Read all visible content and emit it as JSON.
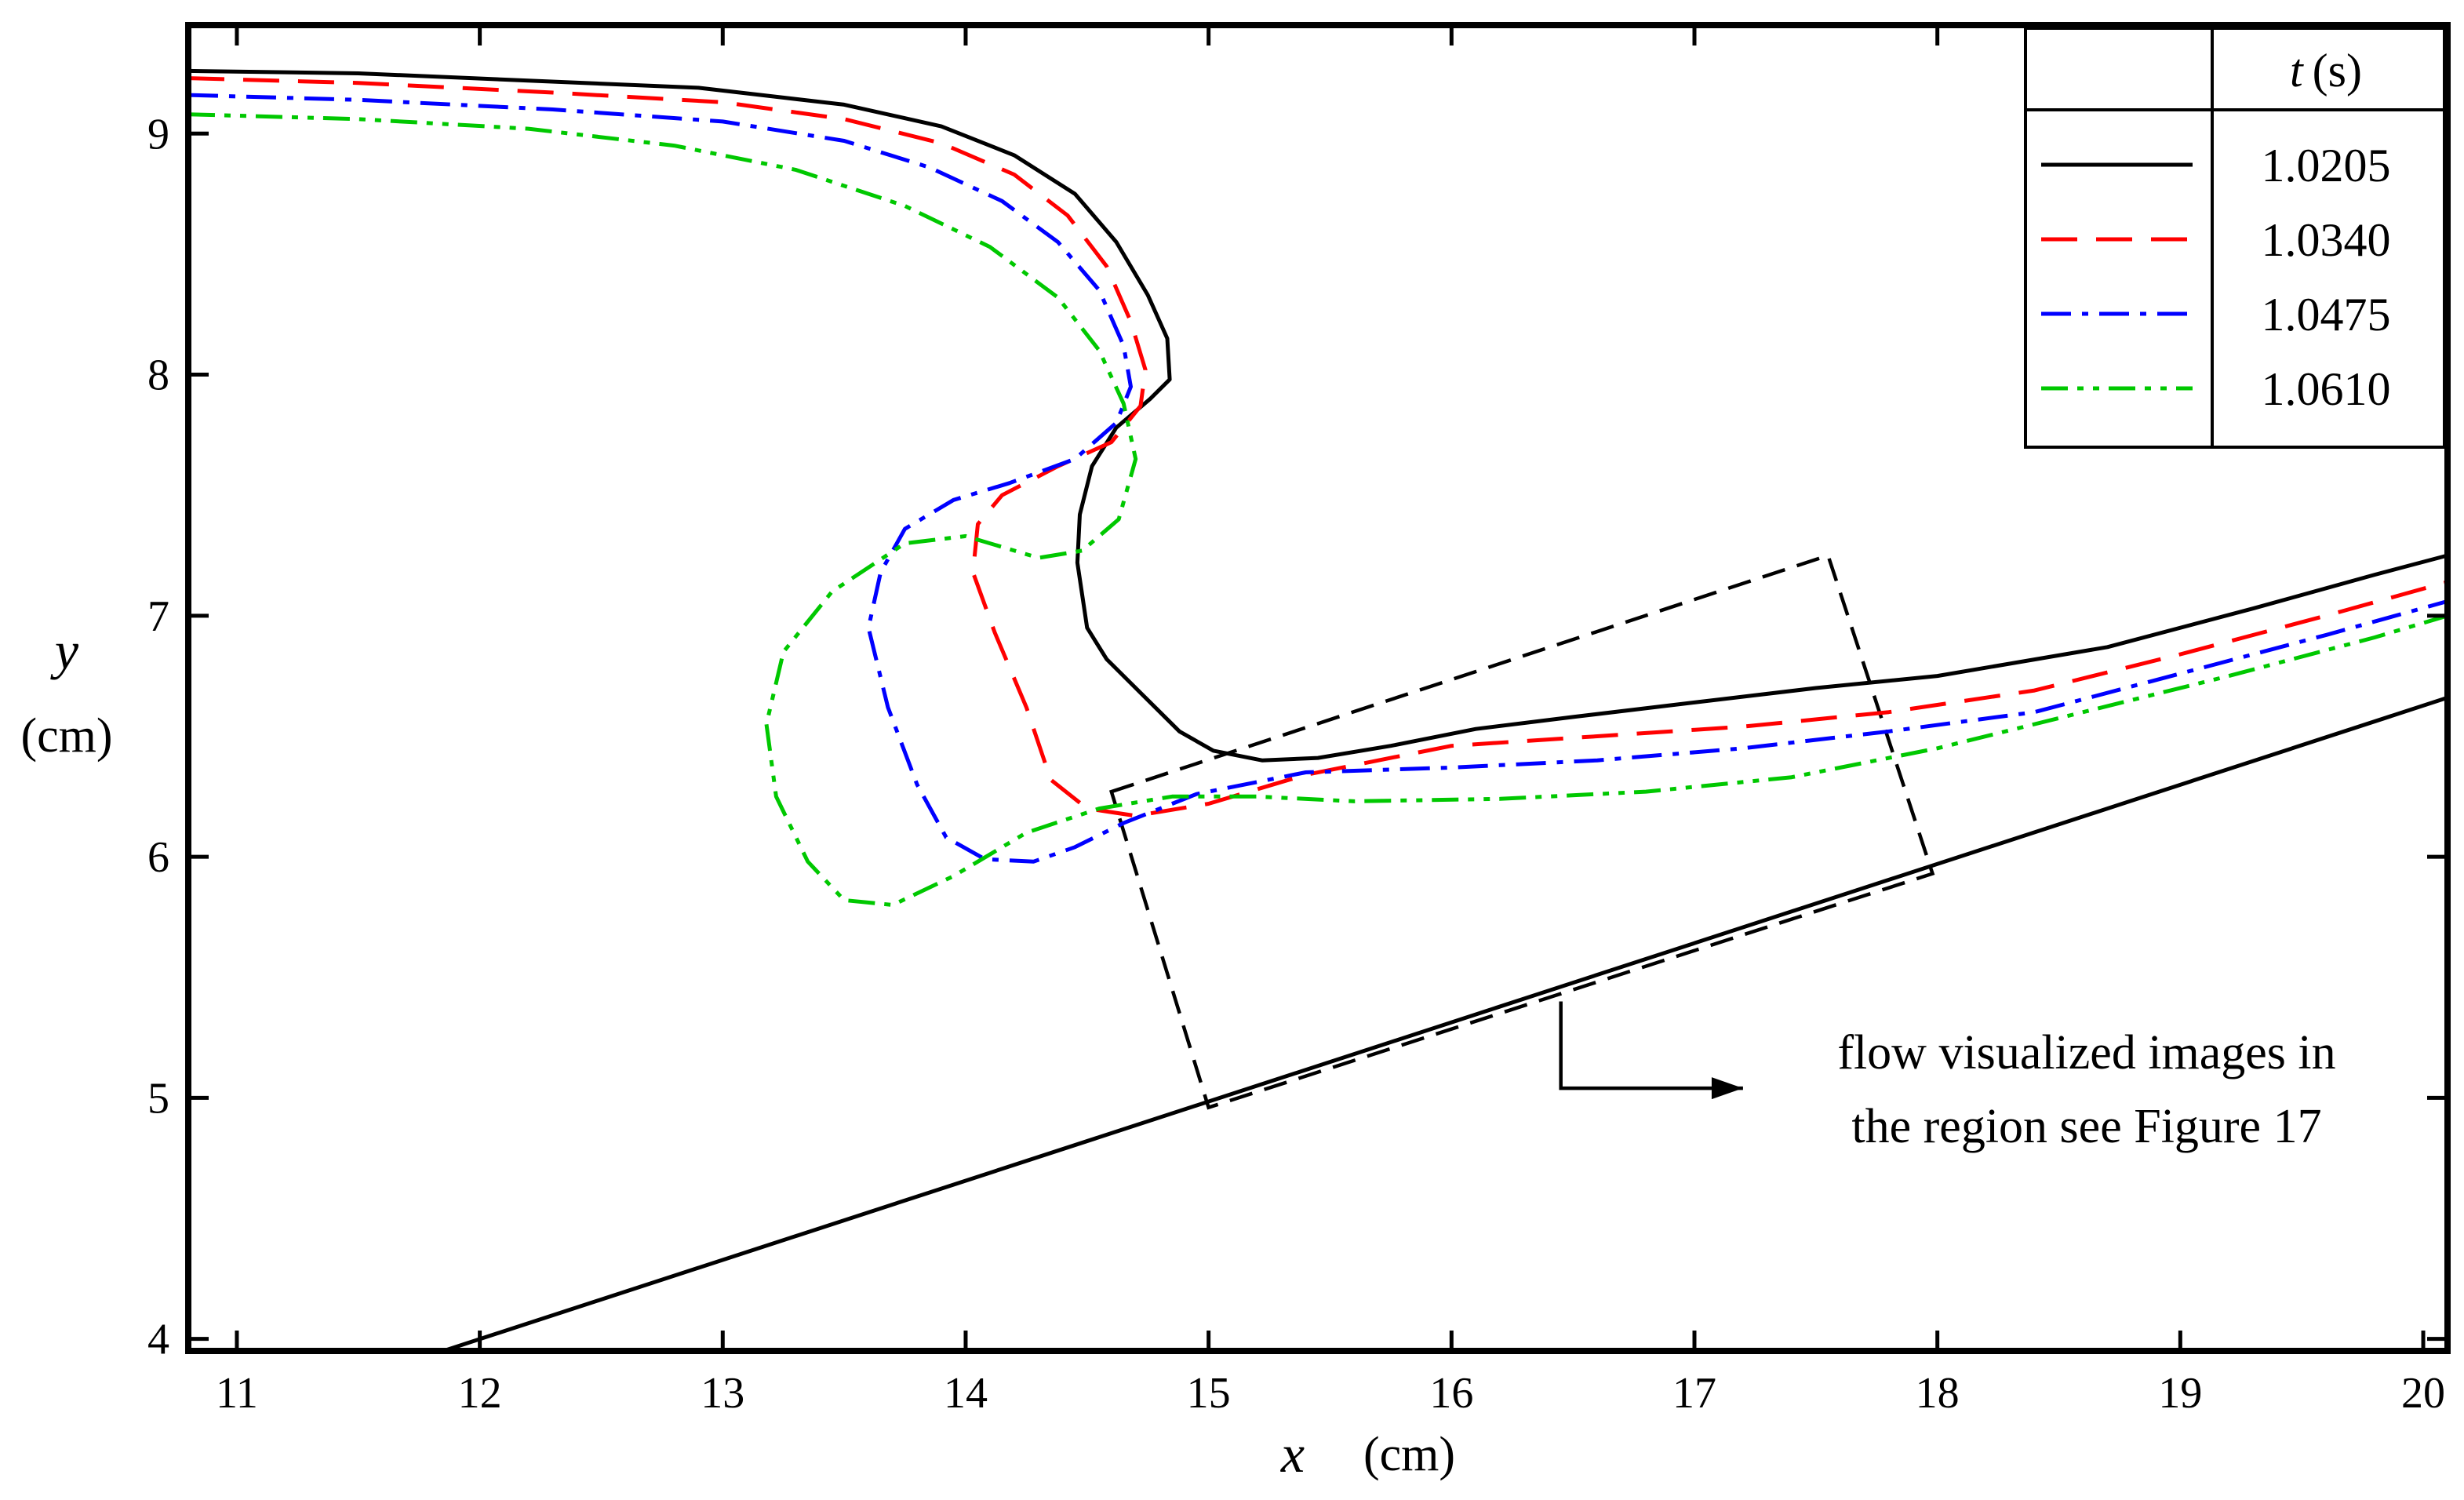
{
  "chart_data": {
    "type": "line",
    "title": "",
    "xlabel": {
      "symbol": "x",
      "unit": "(cm)"
    },
    "ylabel": {
      "symbol": "y",
      "unit": "(cm)"
    },
    "xlim": [
      10.8,
      20.1
    ],
    "ylim": [
      3.95,
      9.45
    ],
    "xticks": [
      11,
      12,
      13,
      14,
      15,
      16,
      17,
      18,
      19,
      20
    ],
    "yticks": [
      4,
      5,
      6,
      7,
      8,
      9
    ],
    "grid": false,
    "legend": {
      "placement": "top-right",
      "header": {
        "symbol": "t",
        "unit": "(s)"
      }
    },
    "series": [
      {
        "name": "1.0205",
        "color": "#000000",
        "dash": "solid",
        "x": [
          10.8,
          11.5,
          12.2,
          12.9,
          13.5,
          13.9,
          14.2,
          14.45,
          14.62,
          14.75,
          14.83,
          14.84,
          14.76,
          14.62,
          14.52,
          14.47,
          14.46,
          14.5,
          14.58,
          14.72,
          14.88,
          15.02,
          15.22,
          15.45,
          15.75,
          16.1,
          16.5,
          17.0,
          17.5,
          18.0,
          18.7,
          19.3,
          19.8,
          20.1
        ],
        "y": [
          9.26,
          9.25,
          9.22,
          9.19,
          9.12,
          9.03,
          8.91,
          8.75,
          8.55,
          8.33,
          8.15,
          7.98,
          7.9,
          7.78,
          7.62,
          7.42,
          7.22,
          6.95,
          6.82,
          6.68,
          6.52,
          6.44,
          6.4,
          6.41,
          6.46,
          6.53,
          6.58,
          6.64,
          6.7,
          6.75,
          6.87,
          7.03,
          7.17,
          7.25
        ]
      },
      {
        "name": "1.0340",
        "color": "#ff0000",
        "dash": "long-dash",
        "x": [
          10.8,
          11.5,
          12.3,
          13.0,
          13.5,
          13.9,
          14.2,
          14.42,
          14.58,
          14.68,
          14.74,
          14.72,
          14.6,
          14.38,
          14.15,
          14.05,
          14.03,
          14.12,
          14.25,
          14.35,
          14.5,
          14.7,
          15.0,
          15.4,
          16.0,
          16.6,
          17.2,
          17.8,
          18.4,
          19.0,
          19.6,
          20.1
        ],
        "y": [
          9.23,
          9.21,
          9.17,
          9.13,
          9.06,
          8.96,
          8.83,
          8.66,
          8.45,
          8.22,
          8.02,
          7.87,
          7.72,
          7.62,
          7.5,
          7.38,
          7.18,
          6.93,
          6.62,
          6.32,
          6.2,
          6.17,
          6.22,
          6.34,
          6.46,
          6.5,
          6.54,
          6.6,
          6.69,
          6.84,
          7.0,
          7.14
        ]
      },
      {
        "name": "1.0475",
        "color": "#0000ff",
        "dash": "dash-dot",
        "x": [
          10.8,
          11.5,
          12.3,
          13.0,
          13.5,
          13.85,
          14.15,
          14.38,
          14.55,
          14.65,
          14.68,
          14.62,
          14.45,
          14.18,
          13.95,
          13.75,
          13.65,
          13.6,
          13.68,
          13.8,
          13.92,
          14.08,
          14.28,
          14.45,
          14.65,
          14.95,
          15.4,
          16.0,
          16.6,
          17.2,
          17.8,
          18.4,
          19.0,
          19.6,
          20.1
        ],
        "y": [
          9.16,
          9.14,
          9.1,
          9.05,
          8.97,
          8.86,
          8.72,
          8.55,
          8.35,
          8.12,
          7.95,
          7.8,
          7.65,
          7.55,
          7.48,
          7.36,
          7.18,
          6.95,
          6.62,
          6.3,
          6.08,
          5.99,
          5.98,
          6.04,
          6.14,
          6.26,
          6.35,
          6.37,
          6.4,
          6.45,
          6.52,
          6.6,
          6.76,
          6.92,
          7.06
        ]
      },
      {
        "name": "1.0610",
        "color": "#00c800",
        "dash": "dash-dot-dot",
        "x": [
          10.8,
          11.5,
          12.2,
          12.8,
          13.3,
          13.75,
          14.1,
          14.38,
          14.55,
          14.65,
          14.7,
          14.63,
          14.48,
          14.3,
          14.0,
          13.75,
          13.45,
          13.25,
          13.18,
          13.22,
          13.35,
          13.5,
          13.7,
          13.95,
          14.25,
          14.55,
          14.85,
          15.2,
          15.6,
          16.2,
          16.8,
          17.4,
          18.0,
          18.6,
          19.2,
          19.8,
          20.1
        ],
        "y": [
          9.08,
          9.06,
          9.02,
          8.95,
          8.85,
          8.7,
          8.53,
          8.32,
          8.1,
          7.88,
          7.65,
          7.4,
          7.27,
          7.24,
          7.33,
          7.3,
          7.1,
          6.85,
          6.55,
          6.25,
          5.98,
          5.82,
          5.8,
          5.92,
          6.1,
          6.2,
          6.25,
          6.25,
          6.23,
          6.24,
          6.27,
          6.33,
          6.45,
          6.6,
          6.75,
          6.91,
          7.0
        ]
      }
    ],
    "slope_line": {
      "x": [
        11.85,
        20.1
      ],
      "y": [
        3.95,
        6.66
      ]
    },
    "annotation": {
      "lines": [
        "flow visualized images in",
        "the region see Figure 17"
      ],
      "box_corners": [
        [
          14.6,
          6.27
        ],
        [
          17.55,
          7.25
        ],
        [
          17.98,
          5.93
        ],
        [
          15.0,
          4.96
        ]
      ],
      "arrow_path": [
        [
          16.45,
          5.4
        ],
        [
          16.45,
          5.04
        ],
        [
          17.2,
          5.04
        ]
      ]
    }
  }
}
